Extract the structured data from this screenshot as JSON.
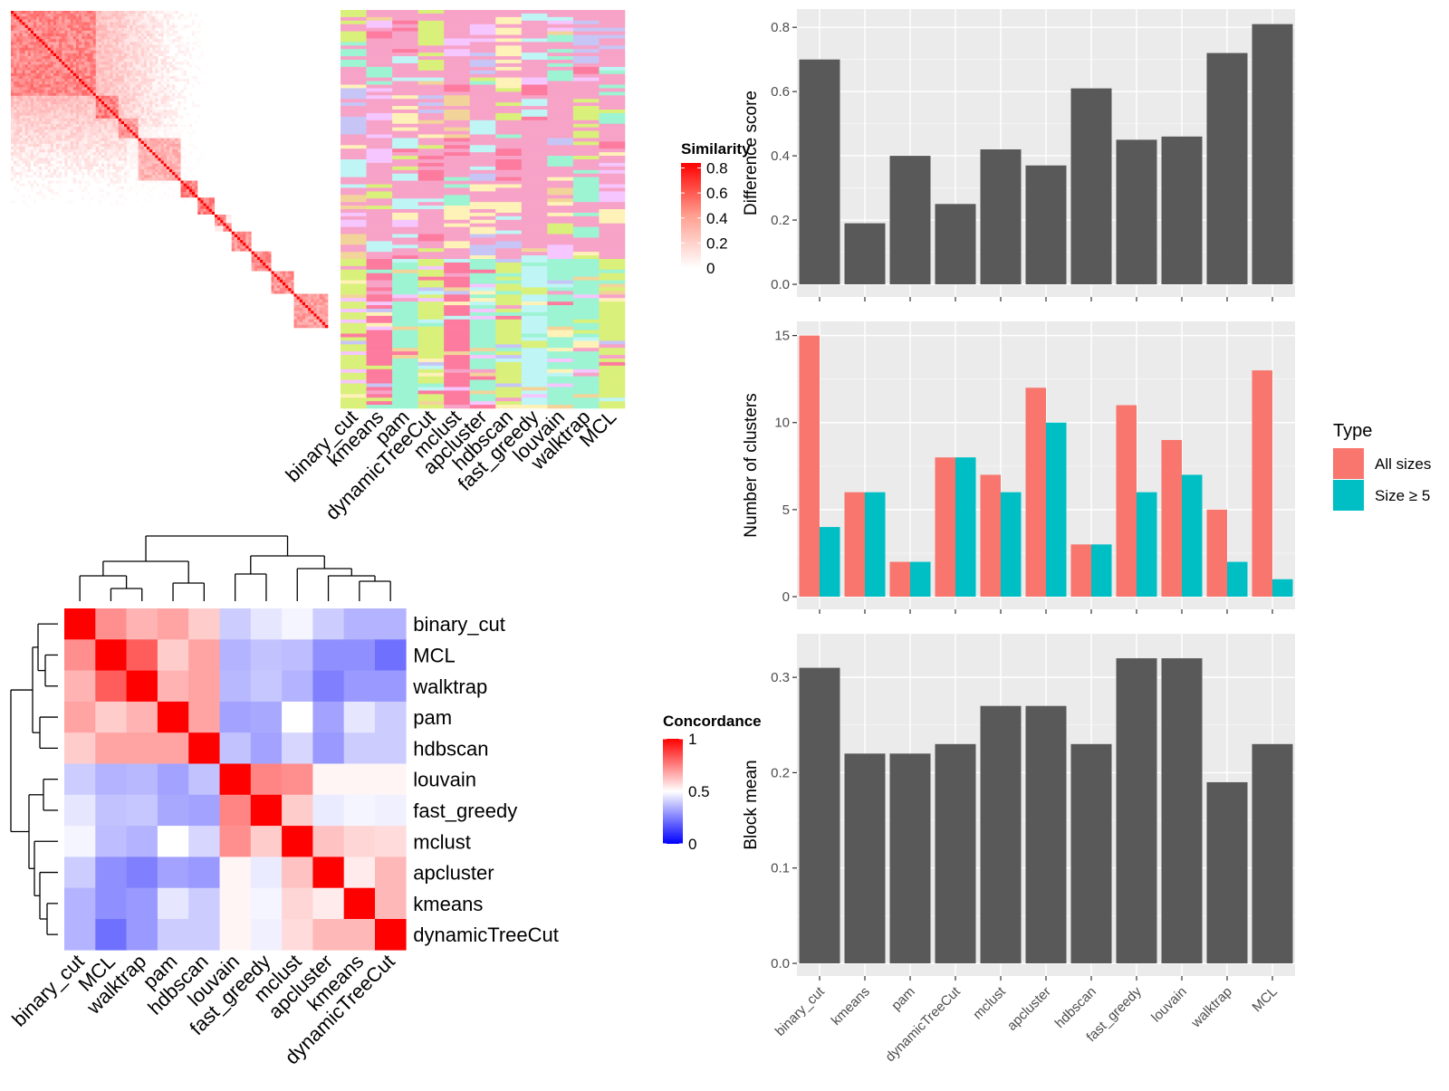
{
  "methods_order": [
    "binary_cut",
    "kmeans",
    "pam",
    "dynamicTreeCut",
    "mclust",
    "apcluster",
    "hdbscan",
    "fast_greedy",
    "louvain",
    "walktrap",
    "MCL"
  ],
  "similarity_heatmap": {
    "legend_title": "Similarity",
    "legend_ticks": [
      "0.8",
      "0.6",
      "0.4",
      "0.2",
      "0"
    ],
    "colors": {
      "high": "#ff0000",
      "low": "#ffffff"
    }
  },
  "cluster_label_heatmap": {
    "columns": [
      "binary_cut",
      "kmeans",
      "pam",
      "dynamicTreeCut",
      "mclust",
      "apcluster",
      "hdbscan",
      "fast_greedy",
      "louvain",
      "walktrap",
      "MCL"
    ],
    "palette": [
      "#f7a3c8",
      "#bff5f5",
      "#c7c5f5",
      "#fff2b8",
      "#d9f07a",
      "#fd7b9f",
      "#9cf4d2",
      "#f5c6ff",
      "#f2d49a"
    ]
  },
  "concordance_heatmap": {
    "legend_title": "Concordance",
    "legend_ticks": [
      "1",
      "0.5",
      "0"
    ],
    "labels": [
      "binary_cut",
      "MCL",
      "walktrap",
      "pam",
      "hdbscan",
      "louvain",
      "fast_greedy",
      "mclust",
      "apcluster",
      "kmeans",
      "dynamicTreeCut"
    ],
    "colors": {
      "high": "#ff0000",
      "mid": "#ffffff",
      "low": "#0000ff"
    }
  },
  "chart_data": [
    {
      "type": "bar",
      "categories": [
        "binary_cut",
        "kmeans",
        "pam",
        "dynamicTreeCut",
        "mclust",
        "apcluster",
        "hdbscan",
        "fast_greedy",
        "louvain",
        "walktrap",
        "MCL"
      ],
      "values": [
        0.7,
        0.19,
        0.4,
        0.25,
        0.42,
        0.37,
        0.61,
        0.45,
        0.46,
        0.72,
        0.81
      ],
      "ylabel": "Difference score",
      "ylim": [
        0,
        0.84
      ],
      "yticks": [
        "0.0",
        "0.2",
        "0.4",
        "0.6",
        "0.8"
      ],
      "color": "#595959"
    },
    {
      "type": "bar",
      "categories": [
        "binary_cut",
        "kmeans",
        "pam",
        "dynamicTreeCut",
        "mclust",
        "apcluster",
        "hdbscan",
        "fast_greedy",
        "louvain",
        "walktrap",
        "MCL"
      ],
      "series": [
        {
          "name": "All sizes",
          "values": [
            15,
            6,
            2,
            8,
            7,
            12,
            3,
            11,
            9,
            5,
            13
          ],
          "color": "#f8766d"
        },
        {
          "name": "Size ≥ 5",
          "values": [
            4,
            6,
            2,
            8,
            6,
            10,
            3,
            6,
            7,
            2,
            1
          ],
          "color": "#00bfc4"
        }
      ],
      "ylabel": "Number of clusters",
      "ylim": [
        0,
        15.5
      ],
      "yticks": [
        "0",
        "5",
        "10",
        "15"
      ],
      "legend": {
        "title": "Type",
        "position": "right"
      }
    },
    {
      "type": "bar",
      "categories": [
        "binary_cut",
        "kmeans",
        "pam",
        "dynamicTreeCut",
        "mclust",
        "apcluster",
        "hdbscan",
        "fast_greedy",
        "louvain",
        "walktrap",
        "MCL"
      ],
      "values": [
        0.31,
        0.22,
        0.22,
        0.23,
        0.27,
        0.27,
        0.23,
        0.32,
        0.32,
        0.19,
        0.23
      ],
      "ylabel": "Block mean",
      "ylim": [
        0,
        0.34
      ],
      "yticks": [
        "0.0",
        "0.1",
        "0.2",
        "0.3"
      ],
      "color": "#595959"
    }
  ]
}
